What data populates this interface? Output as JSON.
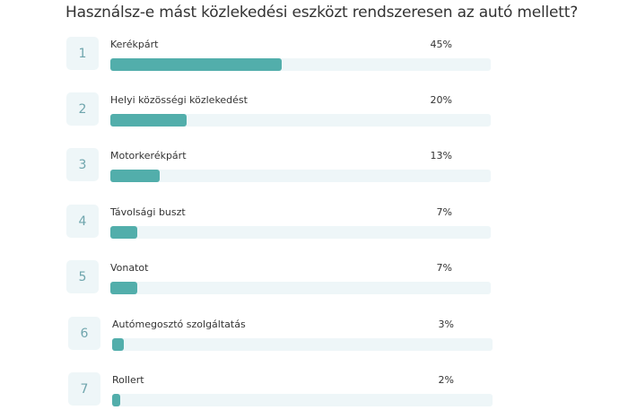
{
  "survey": {
    "question": "Használsz-e mást közlekedési eszközt rendszeresen az autó mellett?"
  },
  "colors": {
    "bar_fill": "#52aeab",
    "bar_track": "#eef6f8",
    "number_box": "#eef6f8",
    "number_text": "#6fa5ad",
    "text": "#333333"
  },
  "rows": [
    {
      "rank": "1",
      "label": "Kerékpárt",
      "percent": "45%",
      "value": 45
    },
    {
      "rank": "2",
      "label": "Helyi közösségi közlekedést",
      "percent": "20%",
      "value": 20
    },
    {
      "rank": "3",
      "label": "Motorkerékpárt",
      "percent": "13%",
      "value": 13
    },
    {
      "rank": "4",
      "label": "Távolsági buszt",
      "percent": "7%",
      "value": 7
    },
    {
      "rank": "5",
      "label": "Vonatot",
      "percent": "7%",
      "value": 7
    },
    {
      "rank": "6",
      "label": "Autómegosztó szolgáltatás",
      "percent": "3%",
      "value": 3
    },
    {
      "rank": "7",
      "label": "Rollert",
      "percent": "2%",
      "value": 2
    }
  ],
  "chart_data": {
    "type": "bar",
    "orientation": "horizontal",
    "title": "Használsz-e mást közlekedési eszközt rendszeresen az autó mellett?",
    "categories": [
      "Kerékpárt",
      "Helyi közösségi közlekedést",
      "Motorkerékpárt",
      "Távolsági buszt",
      "Vonatot",
      "Autómegosztó szolgáltatás",
      "Rollert"
    ],
    "values": [
      45,
      20,
      13,
      7,
      7,
      3,
      2
    ],
    "value_labels": [
      "45%",
      "20%",
      "13%",
      "7%",
      "7%",
      "3%",
      "2%"
    ],
    "xlabel": "",
    "ylabel": "",
    "xlim": [
      0,
      100
    ],
    "unit": "%",
    "grid": false,
    "legend": null
  }
}
